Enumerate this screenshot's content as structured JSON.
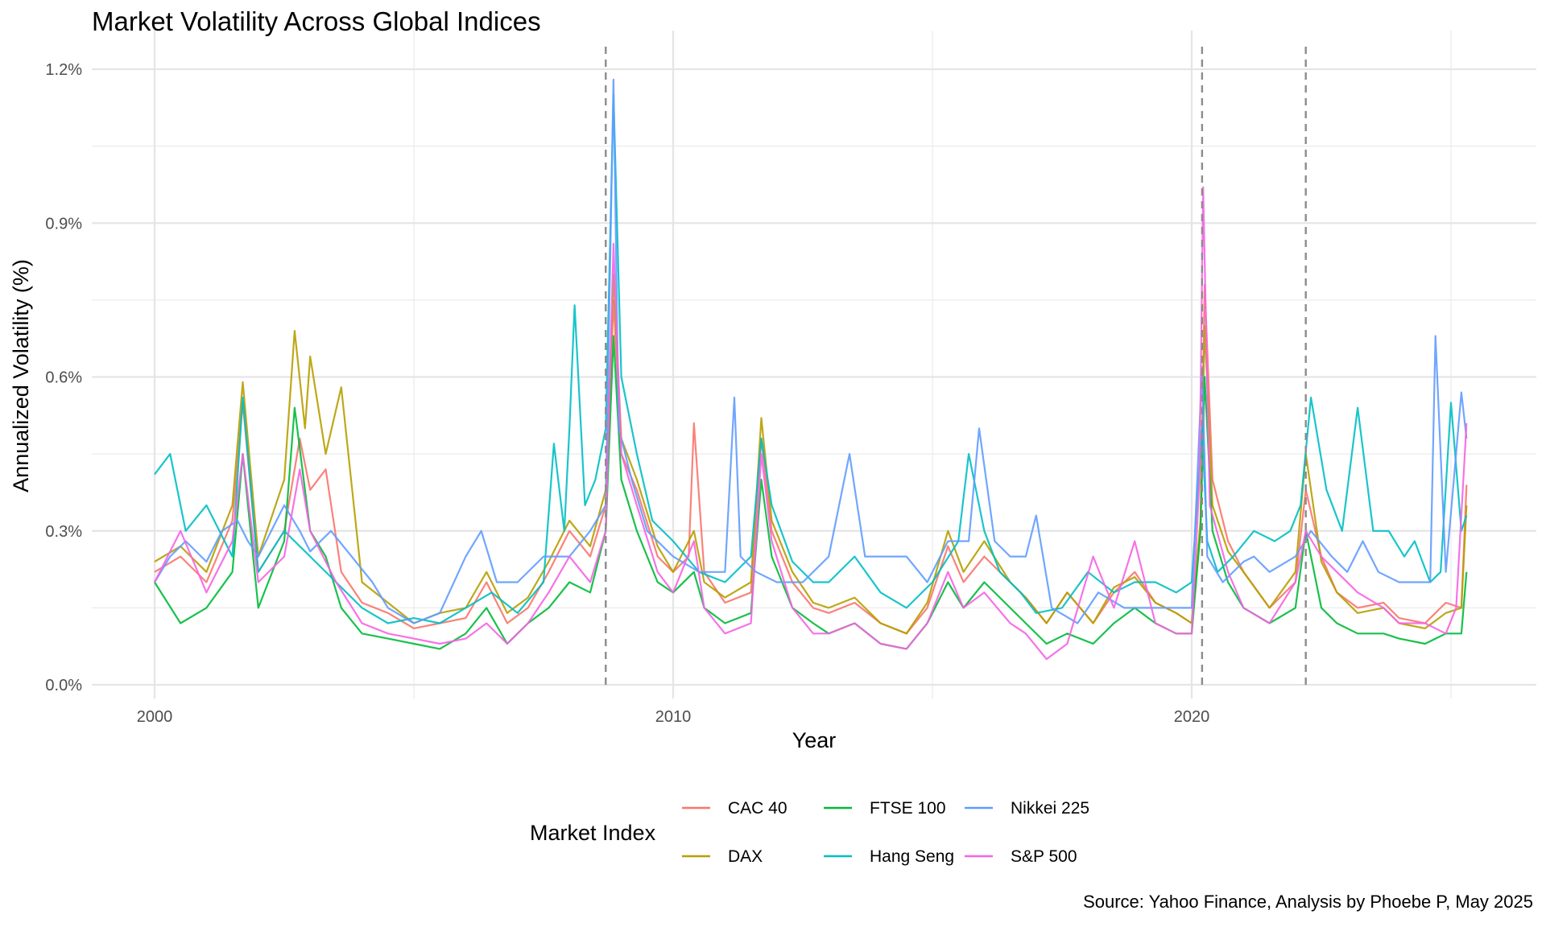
{
  "chart_data": {
    "type": "line",
    "title": "Market Volatility Across Global Indices",
    "caption": "Source: Yahoo Finance, Analysis by Phoebe P, May 2025",
    "xlabel": "Year",
    "ylabel": "Annualized Volatility (%)",
    "xlim": [
      1999.0,
      2026.4
    ],
    "ylim": [
      0.0,
      1.2
    ],
    "x_ticks": [
      2000,
      2010,
      2020
    ],
    "y_ticks": [
      0.0,
      0.3,
      0.6,
      0.9,
      1.2
    ],
    "y_tick_labels": [
      "0.0%",
      "0.3%",
      "0.6%",
      "0.9%",
      "1.2%"
    ],
    "grid": true,
    "legend": {
      "title": "Market Index",
      "position": "bottom",
      "labels": [
        "CAC 40",
        "DAX",
        "FTSE 100",
        "Hang Seng",
        "Nikkei 225",
        "S&P 500"
      ]
    },
    "event_lines": [
      2008.7,
      2020.2,
      2022.2
    ],
    "series": [
      {
        "name": "CAC 40",
        "color": "#F8766D",
        "x": [
          2000.0,
          2000.5,
          2001.0,
          2001.5,
          2001.7,
          2002.0,
          2002.5,
          2002.8,
          2003.0,
          2003.3,
          2003.6,
          2004.0,
          2004.5,
          2005.0,
          2005.5,
          2006.0,
          2006.4,
          2006.8,
          2007.2,
          2007.6,
          2008.0,
          2008.4,
          2008.7,
          2008.85,
          2009.0,
          2009.3,
          2009.7,
          2010.0,
          2010.3,
          2010.4,
          2010.6,
          2011.0,
          2011.5,
          2011.7,
          2011.9,
          2012.3,
          2012.7,
          2013.0,
          2013.5,
          2014.0,
          2014.5,
          2014.9,
          2015.3,
          2015.6,
          2016.0,
          2016.5,
          2016.8,
          2017.2,
          2017.6,
          2018.1,
          2018.5,
          2018.9,
          2019.3,
          2019.7,
          2020.0,
          2020.17,
          2020.25,
          2020.4,
          2020.7,
          2021.0,
          2021.5,
          2022.0,
          2022.2,
          2022.5,
          2022.8,
          2023.2,
          2023.7,
          2024.0,
          2024.5,
          2024.9,
          2025.2,
          2025.3
        ],
        "values": [
          0.22,
          0.25,
          0.2,
          0.32,
          0.55,
          0.22,
          0.3,
          0.48,
          0.38,
          0.42,
          0.22,
          0.16,
          0.14,
          0.11,
          0.12,
          0.13,
          0.2,
          0.12,
          0.15,
          0.22,
          0.3,
          0.25,
          0.35,
          0.75,
          0.45,
          0.38,
          0.25,
          0.22,
          0.25,
          0.51,
          0.22,
          0.16,
          0.18,
          0.48,
          0.3,
          0.2,
          0.15,
          0.14,
          0.16,
          0.12,
          0.1,
          0.15,
          0.27,
          0.2,
          0.25,
          0.2,
          0.17,
          0.12,
          0.18,
          0.12,
          0.18,
          0.22,
          0.16,
          0.14,
          0.12,
          0.3,
          0.78,
          0.4,
          0.28,
          0.22,
          0.15,
          0.2,
          0.38,
          0.25,
          0.18,
          0.15,
          0.16,
          0.13,
          0.12,
          0.16,
          0.15,
          0.39
        ]
      },
      {
        "name": "DAX",
        "color": "#B79F00",
        "x": [
          2000.0,
          2000.5,
          2001.0,
          2001.5,
          2001.7,
          2002.0,
          2002.5,
          2002.7,
          2002.9,
          2003.0,
          2003.3,
          2003.6,
          2004.0,
          2004.5,
          2005.0,
          2005.5,
          2006.0,
          2006.4,
          2006.8,
          2007.2,
          2007.6,
          2008.0,
          2008.4,
          2008.7,
          2008.85,
          2009.0,
          2009.3,
          2009.7,
          2010.0,
          2010.4,
          2010.6,
          2011.0,
          2011.5,
          2011.7,
          2011.9,
          2012.3,
          2012.7,
          2013.0,
          2013.5,
          2014.0,
          2014.5,
          2014.9,
          2015.3,
          2015.6,
          2016.0,
          2016.5,
          2016.8,
          2017.2,
          2017.6,
          2018.1,
          2018.5,
          2018.9,
          2019.3,
          2019.7,
          2020.0,
          2020.17,
          2020.25,
          2020.4,
          2020.7,
          2021.0,
          2021.5,
          2022.0,
          2022.2,
          2022.5,
          2022.8,
          2023.2,
          2023.7,
          2024.0,
          2024.5,
          2024.9,
          2025.2,
          2025.3
        ],
        "values": [
          0.24,
          0.27,
          0.22,
          0.35,
          0.59,
          0.25,
          0.4,
          0.69,
          0.5,
          0.64,
          0.45,
          0.58,
          0.2,
          0.16,
          0.12,
          0.14,
          0.15,
          0.22,
          0.14,
          0.17,
          0.24,
          0.32,
          0.27,
          0.38,
          0.8,
          0.48,
          0.4,
          0.27,
          0.22,
          0.3,
          0.2,
          0.17,
          0.2,
          0.52,
          0.32,
          0.22,
          0.16,
          0.15,
          0.17,
          0.12,
          0.1,
          0.16,
          0.3,
          0.22,
          0.28,
          0.2,
          0.17,
          0.12,
          0.18,
          0.12,
          0.19,
          0.21,
          0.16,
          0.14,
          0.12,
          0.32,
          0.7,
          0.35,
          0.26,
          0.22,
          0.15,
          0.22,
          0.45,
          0.24,
          0.18,
          0.14,
          0.15,
          0.12,
          0.11,
          0.14,
          0.15,
          0.35
        ]
      },
      {
        "name": "FTSE 100",
        "color": "#00BA38",
        "x": [
          2000.0,
          2000.5,
          2001.0,
          2001.5,
          2001.7,
          2002.0,
          2002.5,
          2002.7,
          2003.0,
          2003.3,
          2003.6,
          2004.0,
          2004.5,
          2005.0,
          2005.5,
          2006.0,
          2006.4,
          2006.8,
          2007.2,
          2007.6,
          2008.0,
          2008.4,
          2008.7,
          2008.85,
          2009.0,
          2009.3,
          2009.7,
          2010.0,
          2010.4,
          2010.6,
          2011.0,
          2011.5,
          2011.7,
          2011.9,
          2012.3,
          2012.7,
          2013.0,
          2013.5,
          2014.0,
          2014.5,
          2014.9,
          2015.3,
          2015.6,
          2016.0,
          2016.5,
          2016.8,
          2017.2,
          2017.6,
          2018.1,
          2018.5,
          2018.9,
          2019.3,
          2019.7,
          2020.0,
          2020.17,
          2020.25,
          2020.4,
          2020.7,
          2021.0,
          2021.5,
          2022.0,
          2022.2,
          2022.5,
          2022.8,
          2023.2,
          2023.7,
          2024.0,
          2024.5,
          2024.9,
          2025.2,
          2025.3
        ],
        "values": [
          0.2,
          0.12,
          0.15,
          0.22,
          0.45,
          0.15,
          0.28,
          0.54,
          0.3,
          0.25,
          0.15,
          0.1,
          0.09,
          0.08,
          0.07,
          0.1,
          0.15,
          0.08,
          0.12,
          0.15,
          0.2,
          0.18,
          0.3,
          0.68,
          0.4,
          0.3,
          0.2,
          0.18,
          0.22,
          0.15,
          0.12,
          0.14,
          0.4,
          0.25,
          0.15,
          0.12,
          0.1,
          0.12,
          0.08,
          0.07,
          0.12,
          0.2,
          0.15,
          0.2,
          0.15,
          0.12,
          0.08,
          0.1,
          0.08,
          0.12,
          0.15,
          0.12,
          0.1,
          0.1,
          0.3,
          0.6,
          0.3,
          0.2,
          0.15,
          0.12,
          0.15,
          0.3,
          0.15,
          0.12,
          0.1,
          0.1,
          0.09,
          0.08,
          0.1,
          0.1,
          0.22
        ]
      },
      {
        "name": "Hang Seng",
        "color": "#00BFC4",
        "x": [
          2000.0,
          2000.3,
          2000.6,
          2001.0,
          2001.5,
          2001.7,
          2002.0,
          2002.5,
          2003.0,
          2003.5,
          2004.0,
          2004.5,
          2005.0,
          2005.5,
          2006.0,
          2006.5,
          2007.0,
          2007.5,
          2007.7,
          2007.9,
          2008.0,
          2008.1,
          2008.3,
          2008.5,
          2008.7,
          2008.85,
          2009.0,
          2009.3,
          2009.6,
          2010.0,
          2010.5,
          2011.0,
          2011.5,
          2011.7,
          2011.9,
          2012.3,
          2012.7,
          2013.0,
          2013.5,
          2014.0,
          2014.5,
          2015.0,
          2015.5,
          2015.7,
          2016.0,
          2016.3,
          2016.7,
          2017.0,
          2017.5,
          2018.0,
          2018.5,
          2018.9,
          2019.3,
          2019.7,
          2020.0,
          2020.2,
          2020.3,
          2020.5,
          2020.8,
          2021.2,
          2021.6,
          2021.9,
          2022.1,
          2022.3,
          2022.6,
          2022.9,
          2023.2,
          2023.5,
          2023.8,
          2024.1,
          2024.3,
          2024.6,
          2024.8,
          2025.0,
          2025.2,
          2025.3
        ],
        "values": [
          0.41,
          0.45,
          0.3,
          0.35,
          0.25,
          0.56,
          0.22,
          0.3,
          0.25,
          0.2,
          0.15,
          0.12,
          0.13,
          0.12,
          0.15,
          0.18,
          0.14,
          0.2,
          0.47,
          0.3,
          0.5,
          0.74,
          0.35,
          0.4,
          0.5,
          1.15,
          0.6,
          0.45,
          0.32,
          0.28,
          0.22,
          0.2,
          0.25,
          0.48,
          0.35,
          0.24,
          0.2,
          0.2,
          0.25,
          0.18,
          0.15,
          0.2,
          0.28,
          0.45,
          0.3,
          0.22,
          0.18,
          0.14,
          0.15,
          0.22,
          0.18,
          0.2,
          0.2,
          0.18,
          0.2,
          0.5,
          0.28,
          0.22,
          0.25,
          0.3,
          0.28,
          0.3,
          0.35,
          0.56,
          0.38,
          0.3,
          0.54,
          0.3,
          0.3,
          0.25,
          0.28,
          0.2,
          0.22,
          0.55,
          0.3,
          0.33
        ]
      },
      {
        "name": "Nikkei 225",
        "color": "#619CFF",
        "x": [
          2000.0,
          2000.3,
          2000.6,
          2001.0,
          2001.3,
          2001.6,
          2001.8,
          2002.0,
          2002.5,
          2002.8,
          2003.0,
          2003.4,
          2003.8,
          2004.2,
          2004.5,
          2005.0,
          2005.5,
          2006.0,
          2006.3,
          2006.6,
          2007.0,
          2007.5,
          2008.0,
          2008.4,
          2008.7,
          2008.85,
          2008.95,
          2009.2,
          2009.5,
          2010.0,
          2010.5,
          2011.0,
          2011.18,
          2011.3,
          2011.6,
          2012.0,
          2012.5,
          2013.0,
          2013.4,
          2013.7,
          2014.0,
          2014.5,
          2014.9,
          2015.3,
          2015.7,
          2015.9,
          2016.2,
          2016.5,
          2016.8,
          2017.0,
          2017.3,
          2017.8,
          2018.2,
          2018.7,
          2019.2,
          2019.6,
          2020.0,
          2020.2,
          2020.3,
          2020.6,
          2021.0,
          2021.2,
          2021.5,
          2022.0,
          2022.3,
          2022.7,
          2023.0,
          2023.3,
          2023.6,
          2024.0,
          2024.3,
          2024.6,
          2024.7,
          2024.9,
          2025.2,
          2025.3
        ],
        "values": [
          0.2,
          0.25,
          0.28,
          0.24,
          0.3,
          0.32,
          0.28,
          0.25,
          0.35,
          0.3,
          0.26,
          0.3,
          0.25,
          0.2,
          0.15,
          0.12,
          0.14,
          0.25,
          0.3,
          0.2,
          0.2,
          0.25,
          0.25,
          0.3,
          0.35,
          1.18,
          0.5,
          0.4,
          0.3,
          0.25,
          0.22,
          0.22,
          0.56,
          0.25,
          0.22,
          0.2,
          0.2,
          0.25,
          0.45,
          0.25,
          0.25,
          0.25,
          0.2,
          0.28,
          0.28,
          0.5,
          0.28,
          0.25,
          0.25,
          0.33,
          0.15,
          0.12,
          0.18,
          0.15,
          0.15,
          0.15,
          0.15,
          0.62,
          0.25,
          0.2,
          0.24,
          0.25,
          0.22,
          0.25,
          0.3,
          0.25,
          0.22,
          0.28,
          0.22,
          0.2,
          0.2,
          0.2,
          0.68,
          0.22,
          0.57,
          0.48
        ]
      },
      {
        "name": "S&P 500",
        "color": "#F564E3",
        "x": [
          2000.0,
          2000.5,
          2001.0,
          2001.5,
          2001.7,
          2002.0,
          2002.5,
          2002.8,
          2003.0,
          2003.5,
          2004.0,
          2004.5,
          2005.0,
          2005.5,
          2006.0,
          2006.4,
          2006.8,
          2007.2,
          2007.6,
          2008.0,
          2008.4,
          2008.7,
          2008.85,
          2009.0,
          2009.3,
          2009.7,
          2010.0,
          2010.4,
          2010.6,
          2011.0,
          2011.5,
          2011.7,
          2011.9,
          2012.3,
          2012.7,
          2013.0,
          2013.5,
          2014.0,
          2014.5,
          2014.9,
          2015.3,
          2015.6,
          2016.0,
          2016.5,
          2016.8,
          2017.2,
          2017.6,
          2018.1,
          2018.5,
          2018.9,
          2019.3,
          2019.7,
          2020.0,
          2020.15,
          2020.22,
          2020.35,
          2020.7,
          2021.0,
          2021.5,
          2022.0,
          2022.2,
          2022.5,
          2022.8,
          2023.2,
          2023.7,
          2024.0,
          2024.5,
          2024.9,
          2025.1,
          2025.3
        ],
        "values": [
          0.2,
          0.3,
          0.18,
          0.28,
          0.45,
          0.2,
          0.25,
          0.42,
          0.3,
          0.2,
          0.12,
          0.1,
          0.09,
          0.08,
          0.09,
          0.12,
          0.08,
          0.12,
          0.18,
          0.25,
          0.2,
          0.3,
          0.86,
          0.45,
          0.35,
          0.22,
          0.18,
          0.28,
          0.15,
          0.1,
          0.12,
          0.45,
          0.28,
          0.15,
          0.1,
          0.1,
          0.12,
          0.08,
          0.07,
          0.12,
          0.22,
          0.15,
          0.18,
          0.12,
          0.1,
          0.05,
          0.08,
          0.25,
          0.15,
          0.28,
          0.12,
          0.1,
          0.1,
          0.4,
          0.97,
          0.35,
          0.22,
          0.15,
          0.12,
          0.2,
          0.3,
          0.25,
          0.22,
          0.18,
          0.15,
          0.12,
          0.12,
          0.1,
          0.15,
          0.51
        ]
      }
    ]
  }
}
